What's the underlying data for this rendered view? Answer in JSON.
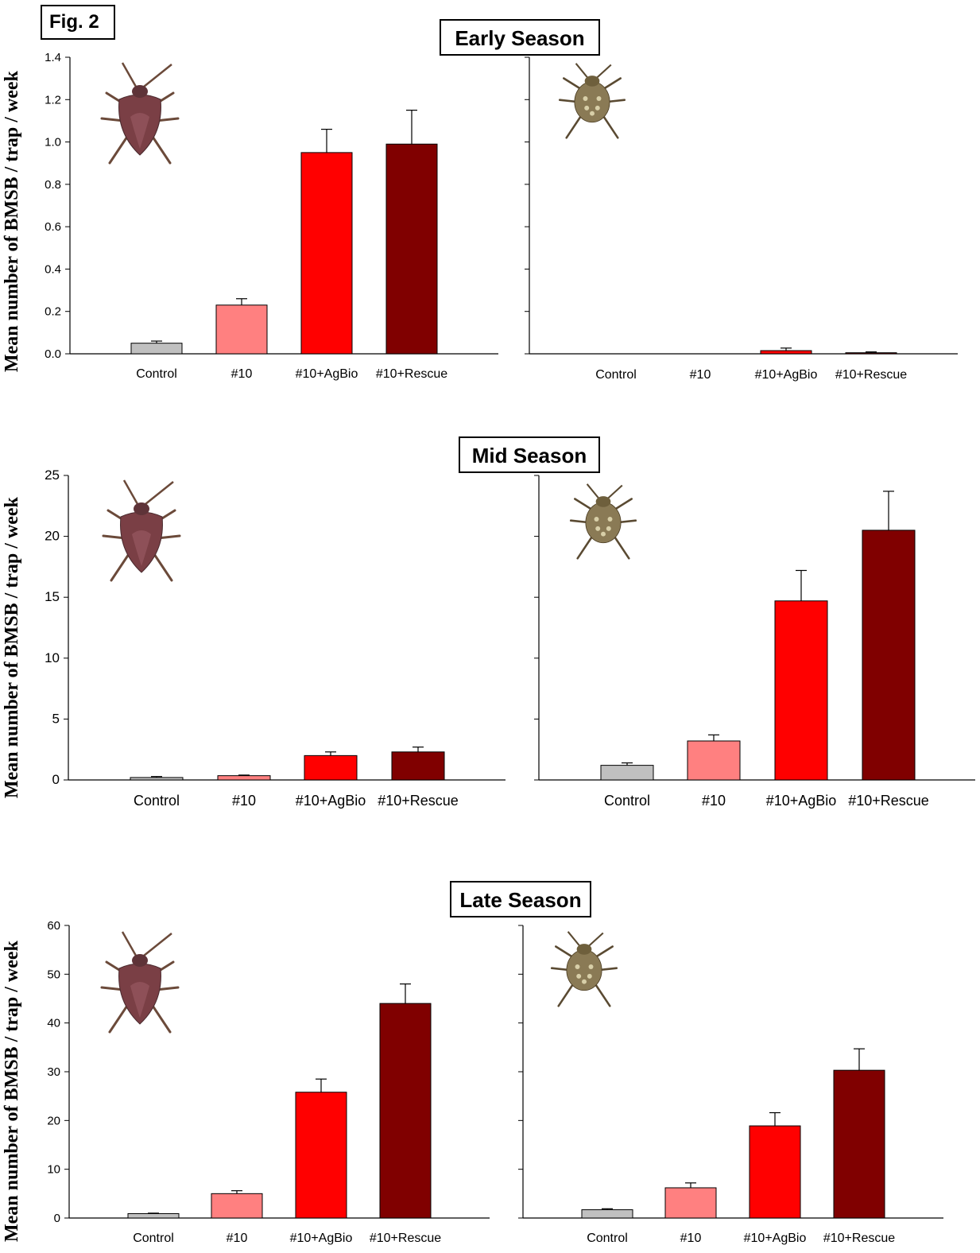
{
  "figure_label": "Fig. 2",
  "colors": {
    "Control": "#c0c0c0",
    "#10": "#ff8080",
    "#10+AgBio": "#ff0000",
    "#10+Rescue": "#800000",
    "insect_adult": "#7a3f45",
    "insect_nymph": "#8a7a55"
  },
  "icons": [
    "adult-stink-bug-icon",
    "nymph-stink-bug-icon"
  ],
  "seasons": [
    {
      "title": "Early Season",
      "ylabel": "Mean number of BMSB / trap / week"
    },
    {
      "title": "Mid Season",
      "ylabel": "Mean number of BMSB / trap / week"
    },
    {
      "title": "Late Season",
      "ylabel": "Mean number of BMSB / trap / week"
    }
  ],
  "chart_data": [
    {
      "type": "bar",
      "title": "",
      "xlabel": "",
      "ylabel": "Mean number of BMSB / trap / week",
      "categories": [
        "Control",
        "#10",
        "#10+AgBio",
        "#10+Rescue"
      ],
      "values": [
        0.05,
        0.23,
        0.95,
        0.99
      ],
      "errors": [
        0.01,
        0.03,
        0.11,
        0.16
      ],
      "ylim": [
        0,
        1.4
      ],
      "yticks": [
        "0.0",
        "0.2",
        "0.4",
        "0.6",
        "0.8",
        "1.0",
        "1.2",
        "1.4"
      ],
      "grid": false
    },
    {
      "type": "bar",
      "title": "",
      "xlabel": "",
      "ylabel": "",
      "categories": [
        "Control",
        "#10",
        "#10+AgBio",
        "#10+Rescue"
      ],
      "values": [
        0.0,
        0.0,
        0.015,
        0.005
      ],
      "errors": [
        0.0,
        0.0,
        0.012,
        0.004
      ],
      "ylim": [
        0,
        1.4
      ],
      "yticks": [],
      "grid": false
    },
    {
      "type": "bar",
      "title": "",
      "xlabel": "",
      "ylabel": "Mean number of BMSB / trap / week",
      "categories": [
        "Control",
        "#10",
        "#10+AgBio",
        "#10+Rescue"
      ],
      "values": [
        0.2,
        0.35,
        2.0,
        2.3
      ],
      "errors": [
        0.08,
        0.05,
        0.3,
        0.4
      ],
      "ylim": [
        0,
        25
      ],
      "yticks": [
        "0",
        "5",
        "10",
        "15",
        "20",
        "25"
      ],
      "grid": false
    },
    {
      "type": "bar",
      "title": "",
      "xlabel": "",
      "ylabel": "",
      "categories": [
        "Control",
        "#10",
        "#10+AgBio",
        "#10+Rescue"
      ],
      "values": [
        1.2,
        3.2,
        14.7,
        20.5
      ],
      "errors": [
        0.2,
        0.5,
        2.5,
        3.2
      ],
      "ylim": [
        0,
        25
      ],
      "yticks": [],
      "grid": false
    },
    {
      "type": "bar",
      "title": "",
      "xlabel": "",
      "ylabel": "Mean number of BMSB / trap / week",
      "categories": [
        "Control",
        "#10",
        "#10+AgBio",
        "#10+Rescue"
      ],
      "values": [
        0.9,
        5.0,
        25.8,
        44.0
      ],
      "errors": [
        0.1,
        0.6,
        2.7,
        4.0
      ],
      "ylim": [
        0,
        60
      ],
      "yticks": [
        "0",
        "10",
        "20",
        "30",
        "40",
        "50",
        "60"
      ],
      "grid": false
    },
    {
      "type": "bar",
      "title": "",
      "xlabel": "",
      "ylabel": "",
      "categories": [
        "Control",
        "#10",
        "#10+AgBio",
        "#10+Rescue"
      ],
      "values": [
        1.7,
        6.2,
        18.9,
        30.3
      ],
      "errors": [
        0.2,
        1.0,
        2.7,
        4.4
      ],
      "ylim": [
        0,
        60
      ],
      "yticks": [],
      "grid": false
    }
  ]
}
